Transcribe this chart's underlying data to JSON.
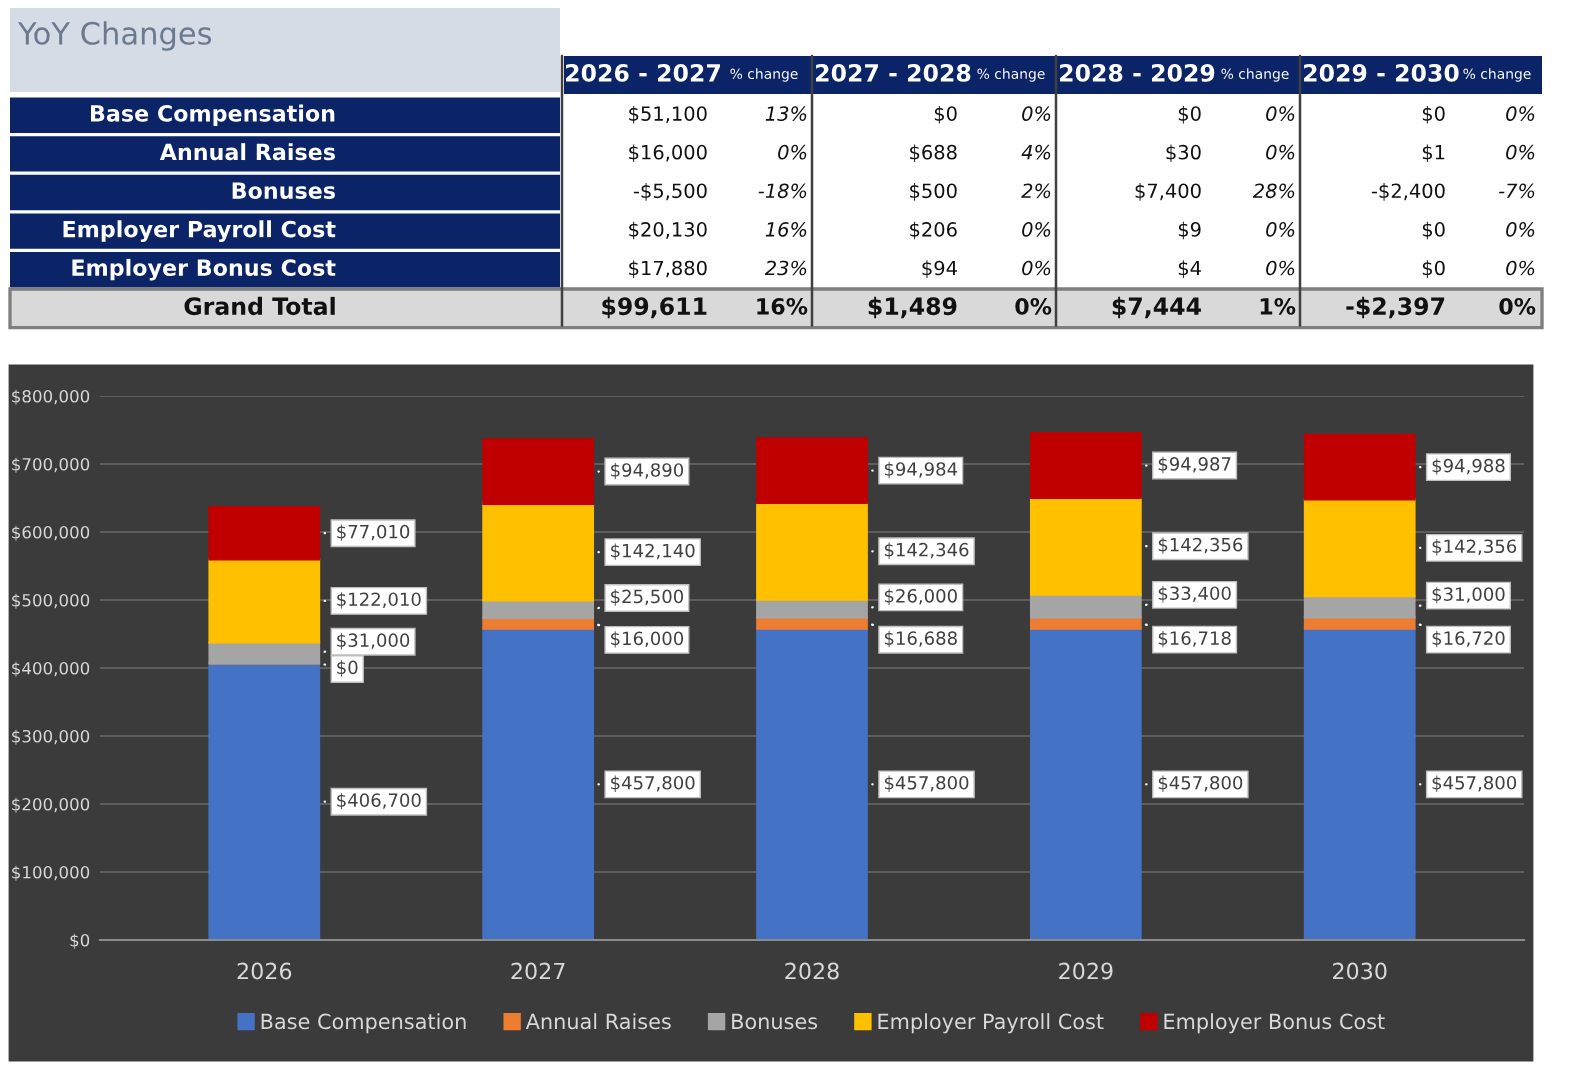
{
  "chart_data": [
    {
      "type": "other",
      "title": "YoY Changes",
      "categories": [
        "2026 - 2027",
        "% change",
        "2027 - 2028",
        "% change",
        "2028 - 2029",
        "% change",
        "2029 - 2030",
        "% change"
      ],
      "y_categories": [
        "Base Compensation",
        "Annual Raises",
        "Bonuses",
        "Employer Payroll Cost",
        "Employer Bonus Cost",
        "Grand Total"
      ],
      "cell_labels": [
        [
          "$51,100",
          "13%",
          "$0",
          "0%",
          "$0",
          "0%",
          "$0",
          "0%"
        ],
        [
          "$16,000",
          "0%",
          "$688",
          "4%",
          "$30",
          "0%",
          "$1",
          "0%"
        ],
        [
          "-$5,500",
          "-18%",
          "$500",
          "2%",
          "$7,400",
          "28%",
          "-$2,400",
          "-7%"
        ],
        [
          "$20,130",
          "16%",
          "$206",
          "0%",
          "$9",
          "0%",
          "$0",
          "0%"
        ],
        [
          "$17,880",
          "23%",
          "$94",
          "0%",
          "$4",
          "0%",
          "$0",
          "0%"
        ],
        [
          "$99,611",
          "16%",
          "$1,489",
          "0%",
          "$7,444",
          "1%",
          "-$2,397",
          "0%"
        ]
      ]
    },
    {
      "type": "bar",
      "stacked": true,
      "categories": [
        "2026",
        "2027",
        "2028",
        "2029",
        "2030"
      ],
      "ylim": [
        0,
        800000
      ],
      "yticks": [
        {
          "value": 0,
          "label": "$0"
        },
        {
          "value": 100000,
          "label": "$100,000"
        },
        {
          "value": 200000,
          "label": "$200,000"
        },
        {
          "value": 300000,
          "label": "$300,000"
        },
        {
          "value": 400000,
          "label": "$400,000"
        },
        {
          "value": 500000,
          "label": "$500,000"
        },
        {
          "value": 600000,
          "label": "$600,000"
        },
        {
          "value": 700000,
          "label": "$700,000"
        },
        {
          "value": 800000,
          "label": "$800,000"
        }
      ],
      "grid": "y",
      "legend": "bottom",
      "series": [
        {
          "name": "Base Compensation",
          "color": "#4472c4",
          "values": [
            406700,
            457800,
            457800,
            457800,
            457800
          ],
          "value_labels": [
            "$406,700",
            "$457,800",
            "$457,800",
            "$457,800",
            "$457,800"
          ]
        },
        {
          "name": "Annual Raises",
          "color": "#ed7d31",
          "values": [
            0,
            16000,
            16688,
            16718,
            16720
          ],
          "value_labels": [
            "$0",
            "$16,000",
            "$16,688",
            "$16,718",
            "$16,720"
          ]
        },
        {
          "name": "Bonuses",
          "color": "#a5a5a5",
          "values": [
            31000,
            25500,
            26000,
            33400,
            31000
          ],
          "value_labels": [
            "$31,000",
            "$25,500",
            "$26,000",
            "$33,400",
            "$31,000"
          ]
        },
        {
          "name": "Employer Payroll Cost",
          "color": "#ffc000",
          "values": [
            122010,
            142140,
            142346,
            142356,
            142356
          ],
          "value_labels": [
            "$122,010",
            "$142,140",
            "$142,346",
            "$142,356",
            "$142,356"
          ]
        },
        {
          "name": "Employer Bonus Cost",
          "color": "#c00000",
          "values": [
            77010,
            94890,
            94984,
            94987,
            94988
          ],
          "value_labels": [
            "$77,010",
            "$94,890",
            "$94,984",
            "$94,987",
            "$94,988"
          ]
        }
      ]
    }
  ]
}
